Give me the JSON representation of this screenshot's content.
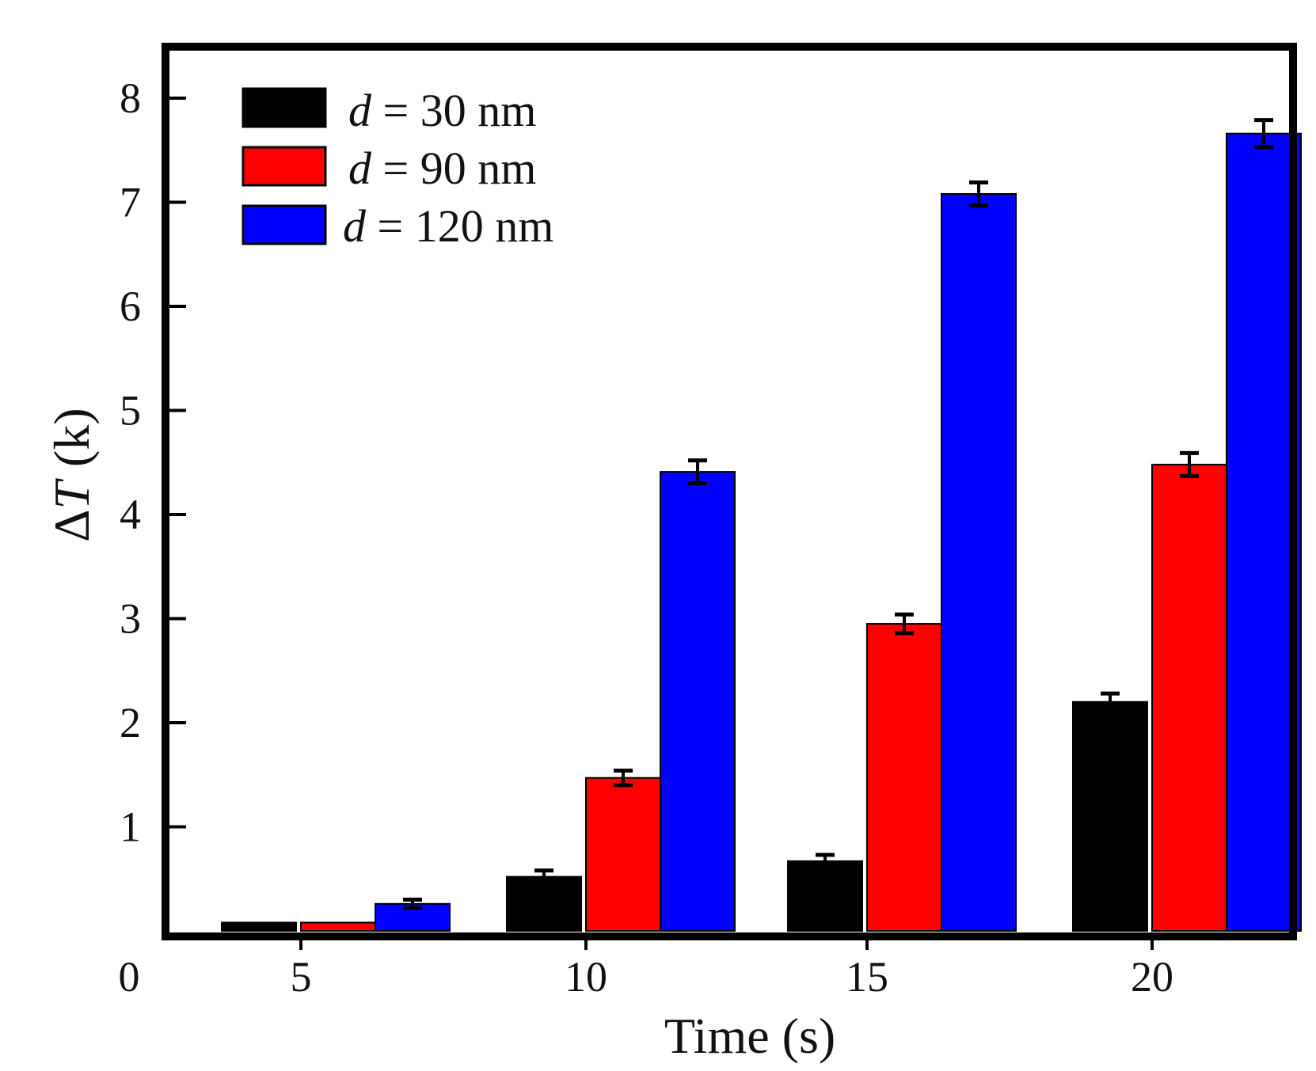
{
  "chart_data": {
    "type": "bar",
    "title": "",
    "xlabel": "Time (s)",
    "ylabel": {
      "prefix": "Δ",
      "italic": "T",
      "unit": "(k)"
    },
    "categories": [
      "5",
      "10",
      "15",
      "20"
    ],
    "y_ticks": [
      "1",
      "2",
      "3",
      "4",
      "5",
      "6",
      "7",
      "8"
    ],
    "origin_label": "0",
    "ylim": [
      0,
      8.5
    ],
    "grid": false,
    "legend_position": "top-left",
    "series": [
      {
        "name": "d = 30 nm",
        "legend_var": "d",
        "legend_rest": " = 30 nm",
        "color": "#000000",
        "values": [
          0.08,
          0.52,
          0.67,
          2.2
        ],
        "errors": [
          0,
          0.06,
          0.06,
          0.08
        ]
      },
      {
        "name": "d = 90 nm",
        "legend_var": "d",
        "legend_rest": " = 90 nm",
        "color": "#ff0000",
        "values": [
          0.08,
          1.47,
          2.95,
          4.48
        ],
        "errors": [
          0,
          0.07,
          0.09,
          0.11
        ]
      },
      {
        "name": "d = 120 nm",
        "legend_var": "d",
        "legend_rest": " = 120 nm",
        "color": "#0000ff",
        "values": [
          0.26,
          4.41,
          7.08,
          7.66
        ],
        "errors": [
          0.04,
          0.11,
          0.11,
          0.13
        ]
      }
    ]
  }
}
